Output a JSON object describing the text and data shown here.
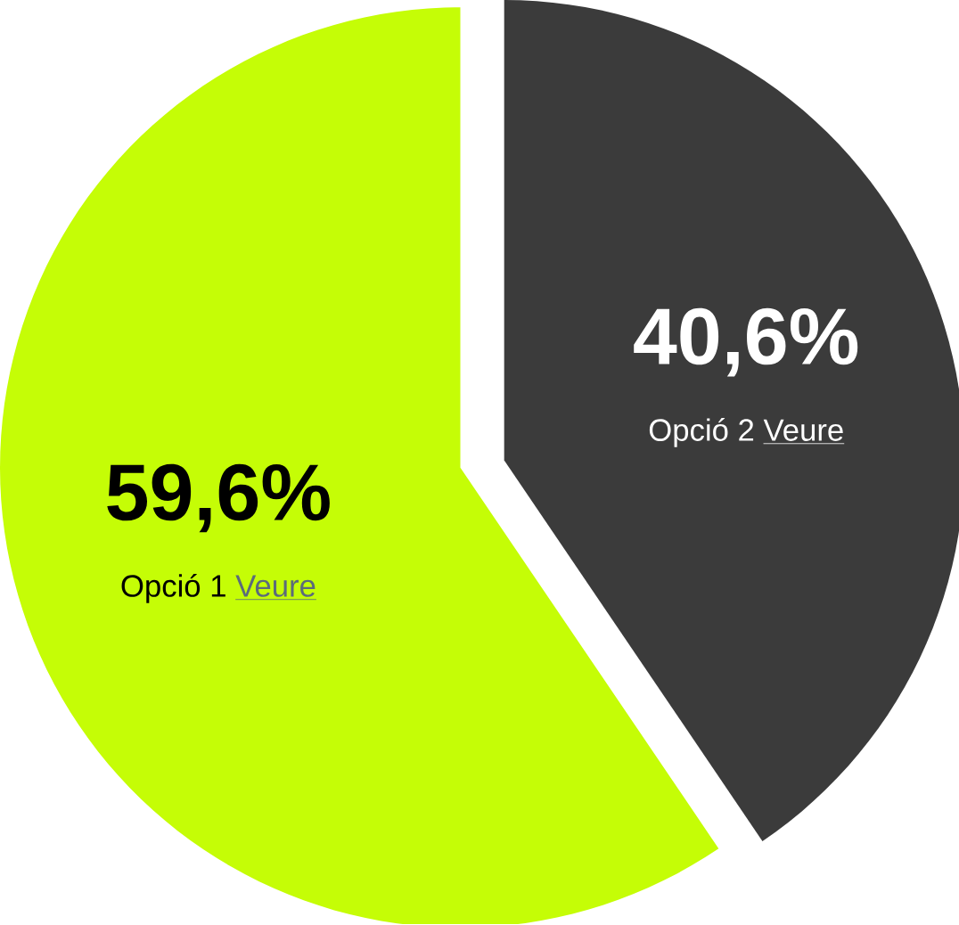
{
  "chart_data": {
    "type": "pie",
    "categories": [
      "Opció 1",
      "Opció 2"
    ],
    "values": [
      59.6,
      40.6
    ],
    "value_labels": [
      "59,6%",
      "40,6%"
    ],
    "colors": [
      "#c5fd06",
      "#3b3b3b"
    ],
    "annotations": [
      "Veure",
      "Veure"
    ]
  }
}
